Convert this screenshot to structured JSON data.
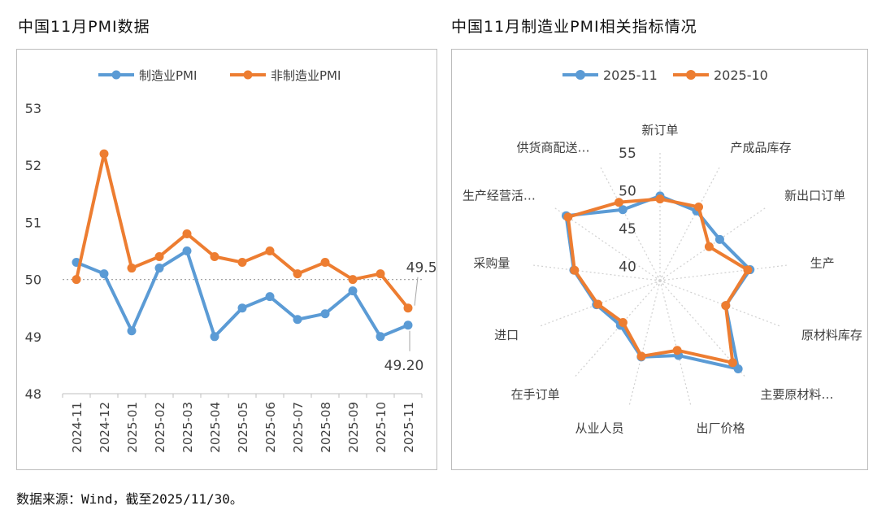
{
  "left_title": "中国11月PMI数据",
  "right_title": "中国11月制造业PMI相关指标情况",
  "source_note": "数据来源：Wind，截至2025/11/30。",
  "colors": {
    "blue": "#5b9bd5",
    "orange": "#ed7d31",
    "grid": "#bfbfbf",
    "text": "#404040"
  },
  "chart_data": [
    {
      "type": "line",
      "x": [
        "2024-11",
        "2024-12",
        "2025-01",
        "2025-02",
        "2025-03",
        "2025-04",
        "2025-05",
        "2025-06",
        "2025-07",
        "2025-08",
        "2025-09",
        "2025-10",
        "2025-11"
      ],
      "series": [
        {
          "name": "制造业PMI",
          "values": [
            50.3,
            50.1,
            49.1,
            50.2,
            50.5,
            49.0,
            49.5,
            49.7,
            49.3,
            49.4,
            49.8,
            49.0,
            49.2
          ]
        },
        {
          "name": "非制造业PMI",
          "values": [
            50.0,
            52.2,
            50.2,
            50.4,
            50.8,
            50.4,
            50.3,
            50.5,
            50.1,
            50.3,
            50.0,
            50.1,
            49.5
          ]
        }
      ],
      "ylim": [
        48,
        53
      ],
      "yticks": [
        "48",
        "49",
        "50",
        "51",
        "52",
        "53"
      ],
      "reference_line": 50,
      "annotations": [
        "49.50",
        "49.20"
      ],
      "legend": "top"
    },
    {
      "type": "radar",
      "categories": [
        "新订单",
        "产成品库存",
        "新出口订单",
        "生产",
        "原材料库存",
        "主要原材料…",
        "出厂价格",
        "从业人员",
        "在手订单",
        "进口",
        "采购量",
        "生产经营活…",
        "供货商配送…"
      ],
      "series": [
        {
          "name": "2025-11",
          "values": [
            49.2,
            48.4,
            47.6,
            50.0,
            47.3,
            53.6,
            48.2,
            48.4,
            45.9,
            47.0,
            49.5,
            53.1,
            48.6
          ]
        },
        {
          "name": "2025-10",
          "values": [
            48.8,
            49.0,
            45.9,
            49.7,
            47.3,
            52.5,
            47.5,
            48.3,
            45.4,
            46.8,
            49.4,
            52.8,
            49.7
          ]
        }
      ],
      "rlim": [
        38,
        55
      ],
      "rticks": [
        "40",
        "45",
        "50",
        "55"
      ],
      "legend": "top"
    }
  ]
}
